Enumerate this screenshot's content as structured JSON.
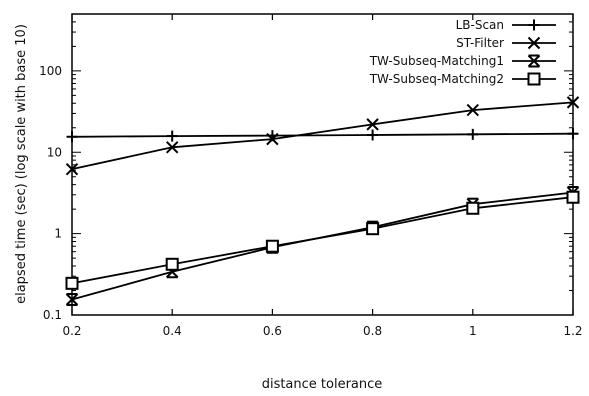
{
  "chart_data": {
    "type": "line",
    "xlabel": "distance  tolerance",
    "ylabel": "elapsed time (sec) (log scale with base 10)",
    "x": [
      0.2,
      0.4,
      0.6,
      0.8,
      1.0,
      1.2
    ],
    "xlim": [
      0.2,
      1.2
    ],
    "ylim": [
      0.1,
      500
    ],
    "yscale": "log",
    "x_ticks": [
      "0.2",
      "0.4",
      "0.6",
      "0.8",
      "1",
      "1.2"
    ],
    "y_ticks": [
      "0.1",
      "1",
      "10",
      "100"
    ],
    "grid": false,
    "legend_position": "top-right",
    "series": [
      {
        "name": "LB-Scan",
        "marker": "plus",
        "values": [
          15.5,
          15.8,
          16.0,
          16.3,
          16.6,
          16.9
        ]
      },
      {
        "name": "ST-Filter",
        "marker": "x",
        "values": [
          6.2,
          11.5,
          14.5,
          22.0,
          33.0,
          41.0
        ]
      },
      {
        "name": "TW-Subseq-Matching1",
        "marker": "hourglass",
        "values": [
          0.155,
          0.34,
          0.68,
          1.2,
          2.3,
          3.2
        ]
      },
      {
        "name": "TW-Subseq-Matching2",
        "marker": "square",
        "values": [
          0.245,
          0.42,
          0.7,
          1.15,
          2.05,
          2.8
        ]
      }
    ]
  }
}
